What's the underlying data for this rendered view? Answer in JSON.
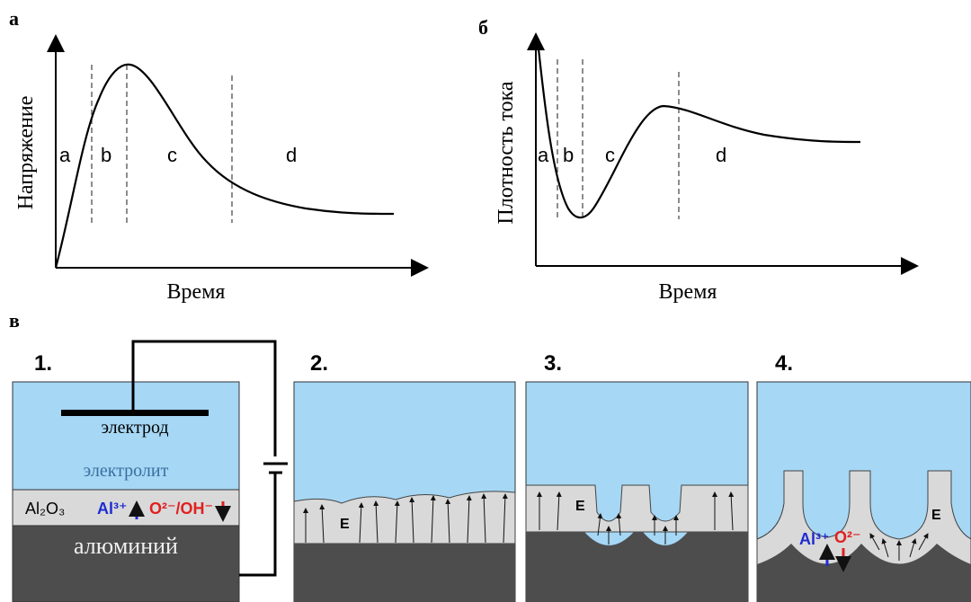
{
  "panel_a": {
    "label": "а",
    "y_axis": "Напряжение",
    "x_axis": "Время",
    "regions": [
      "a",
      "b",
      "c",
      "d"
    ]
  },
  "panel_b": {
    "label": "б",
    "y_axis": "Плотность тока",
    "x_axis": "Время",
    "regions": [
      "a",
      "b",
      "c",
      "d"
    ]
  },
  "panel_c": {
    "label": "в",
    "steps": [
      "1.",
      "2.",
      "3.",
      "4."
    ],
    "electrode": "электрод",
    "electrolyte": "электролит",
    "oxide": "Al₂O₃",
    "cation": "Al³⁺",
    "anion": "O²⁻/OH⁻",
    "anion_short": "O²⁻",
    "metal": "алюминий",
    "field": "E"
  }
}
